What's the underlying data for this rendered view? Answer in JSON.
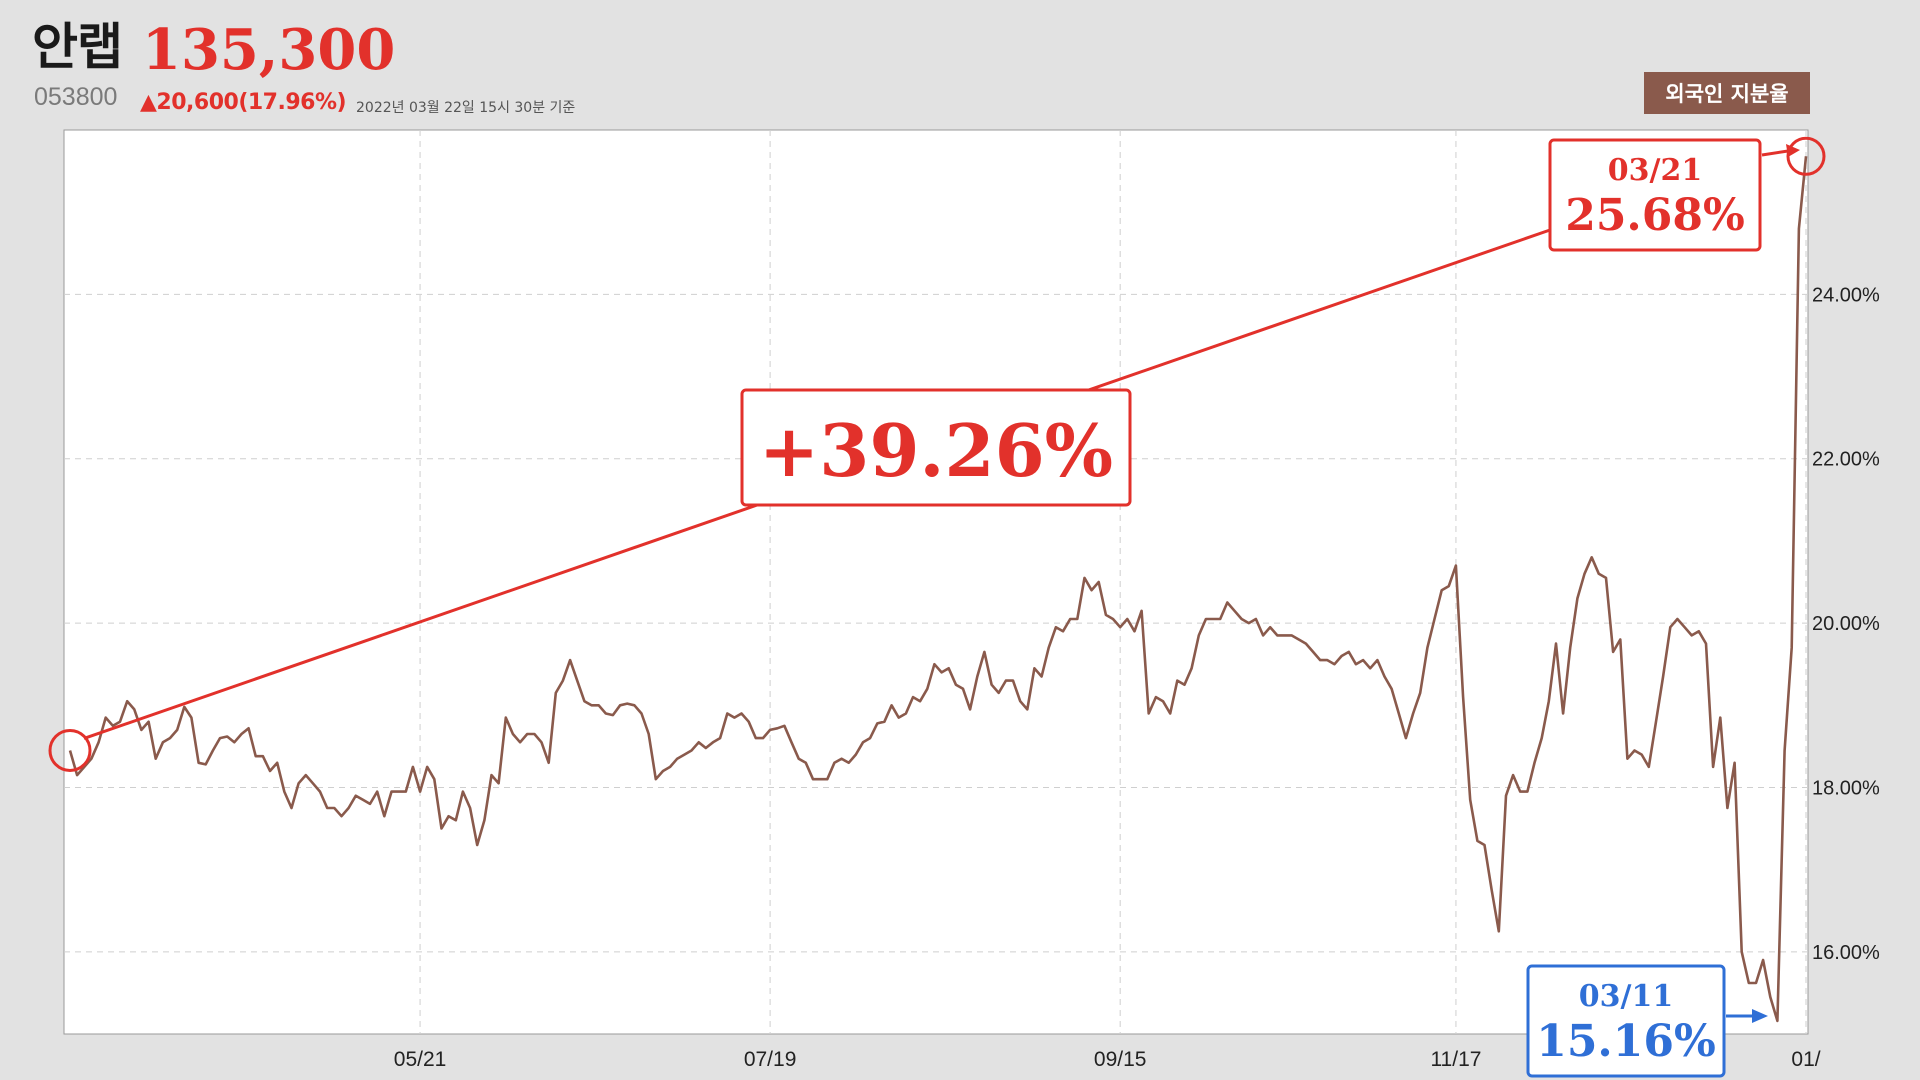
{
  "header": {
    "name": "안랩",
    "price": "135,300",
    "code": "053800",
    "change": "▲20,600(17.96%)",
    "timestamp": "2022년 03월 22일 15시 30분 기준"
  },
  "series_label": "외국인 지분율",
  "colors": {
    "line": "#8a5a4c",
    "highlight_up": "#e2312b",
    "highlight_down": "#2f6fd6"
  },
  "annotations": {
    "end": {
      "date": "03/21",
      "value": "25.68%"
    },
    "low": {
      "date": "03/11",
      "value": "15.16%"
    },
    "change": "+39.26%"
  },
  "chart_data": {
    "type": "line",
    "ylim": [
      15.0,
      26.0
    ],
    "yticks": [
      "16.00%",
      "18.00%",
      "20.00%",
      "22.00%",
      "24.00%"
    ],
    "ytick_values": [
      16,
      18,
      20,
      22,
      24
    ],
    "xticks": [
      "05/21",
      "07/19",
      "09/15",
      "11/17",
      "01/"
    ],
    "xtick_indices": [
      49,
      98,
      147,
      194,
      243
    ],
    "grid": true,
    "series": [
      {
        "values": [
          18.45,
          18.15,
          18.25,
          18.35,
          18.55,
          18.85,
          18.75,
          18.8,
          19.05,
          18.95,
          18.7,
          18.8,
          18.35,
          18.55,
          18.6,
          18.7,
          18.98,
          18.85,
          18.3,
          18.28,
          18.45,
          18.6,
          18.62,
          18.55,
          18.65,
          18.72,
          18.38,
          18.38,
          18.2,
          18.3,
          17.95,
          17.75,
          18.05,
          18.15,
          18.05,
          17.95,
          17.75,
          17.75,
          17.65,
          17.75,
          17.9,
          17.85,
          17.8,
          17.95,
          17.65,
          17.95,
          17.95,
          17.95,
          18.25,
          17.95,
          18.25,
          18.1,
          17.5,
          17.65,
          17.6,
          17.95,
          17.75,
          17.3,
          17.6,
          18.15,
          18.05,
          18.85,
          18.65,
          18.55,
          18.65,
          18.65,
          18.55,
          18.3,
          19.15,
          19.3,
          19.55,
          19.3,
          19.05,
          19.0,
          19.0,
          18.9,
          18.88,
          19.0,
          19.02,
          19.0,
          18.9,
          18.65,
          18.1,
          18.2,
          18.25,
          18.35,
          18.4,
          18.45,
          18.55,
          18.48,
          18.55,
          18.6,
          18.9,
          18.85,
          18.9,
          18.8,
          18.6,
          18.6,
          18.7,
          18.72,
          18.75,
          18.55,
          18.35,
          18.3,
          18.1,
          18.1,
          18.1,
          18.3,
          18.35,
          18.3,
          18.4,
          18.55,
          18.6,
          18.78,
          18.8,
          19.0,
          18.85,
          18.9,
          19.1,
          19.05,
          19.2,
          19.5,
          19.4,
          19.45,
          19.25,
          19.2,
          18.95,
          19.35,
          19.65,
          19.25,
          19.15,
          19.3,
          19.3,
          19.05,
          18.95,
          19.45,
          19.35,
          19.7,
          19.95,
          19.9,
          20.05,
          20.05,
          20.55,
          20.4,
          20.5,
          20.1,
          20.05,
          19.95,
          20.05,
          19.9,
          20.15,
          18.9,
          19.1,
          19.05,
          18.9,
          19.3,
          19.25,
          19.45,
          19.85,
          20.05,
          20.05,
          20.05,
          20.25,
          20.15,
          20.05,
          20.0,
          20.05,
          19.85,
          19.95,
          19.85,
          19.85,
          19.85,
          19.8,
          19.75,
          19.65,
          19.55,
          19.55,
          19.5,
          19.6,
          19.65,
          19.5,
          19.55,
          19.45,
          19.55,
          19.35,
          19.2,
          18.9,
          18.6,
          18.9,
          19.15,
          19.7,
          20.05,
          20.4,
          20.45,
          20.7,
          19.1,
          17.85,
          17.35,
          17.3,
          16.75,
          16.25,
          17.9,
          18.15,
          17.95,
          17.95,
          18.3,
          18.6,
          19.05,
          19.75,
          18.9,
          19.7,
          20.3,
          20.6,
          20.8,
          20.6,
          20.55,
          19.65,
          19.8,
          18.35,
          18.45,
          18.4,
          18.25,
          18.8,
          19.35,
          19.95,
          20.05,
          19.95,
          19.85,
          19.9,
          19.75,
          18.25,
          18.85,
          17.75,
          18.3,
          16.0,
          15.62,
          15.62,
          15.9,
          15.45,
          15.16,
          18.45,
          19.7,
          24.8,
          25.68
        ]
      }
    ]
  }
}
